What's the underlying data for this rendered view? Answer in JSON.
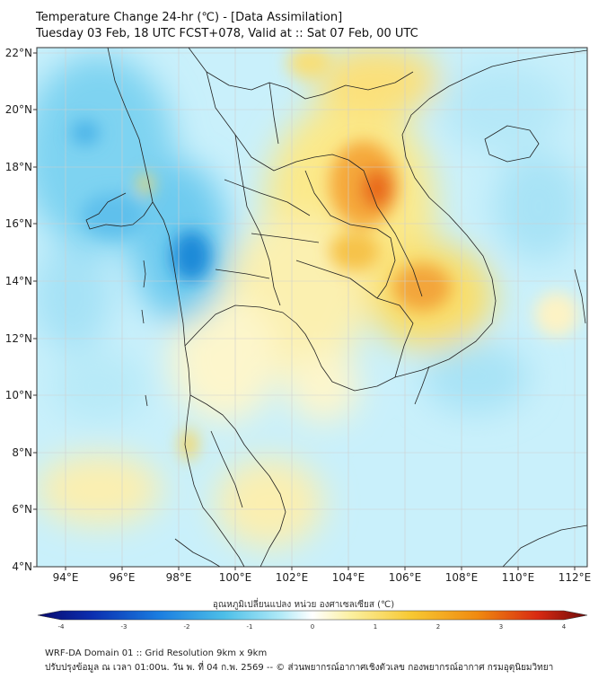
{
  "title_line1": "Temperature Change 24-hr (℃) - [Data Assimilation]",
  "title_line2": "Tuesday 03 Feb, 18 UTC FCST+078, Valid at :: Sat 07 Feb, 00 UTC",
  "lat_labels": [
    "22°N",
    "20°N",
    "18°N",
    "16°N",
    "14°N",
    "12°N",
    "10°N",
    "8°N",
    "6°N",
    "4°N"
  ],
  "lon_labels": [
    "94°E",
    "96°E",
    "98°E",
    "100°E",
    "102°E",
    "104°E",
    "106°E",
    "108°E",
    "110°E",
    "112°E"
  ],
  "colorbar": {
    "title": "อุณหภูมิเปลี่ยนแปลง หน่วย องศาเซลเซียส (℃)",
    "ticks": [
      "-4",
      "-3",
      "-2",
      "-1",
      "0",
      "1",
      "2",
      "3",
      "4"
    ],
    "range": [
      -4,
      4
    ],
    "colors": [
      "#0a0a6e",
      "#0b2fb0",
      "#1a7de0",
      "#4dbfe8",
      "#aee9f7",
      "#ffffff",
      "#fbf0a0",
      "#f7c832",
      "#f08a10",
      "#d82a12",
      "#6e0a0a"
    ]
  },
  "footer_line1": "WRF-DA Domain 01 :: Grid Resolution 9km x 9km",
  "footer_line2": "ปรับปรุงข้อมูล ณ เวลา 01:00น. วัน พ. ที่ 04 ก.พ. 2569 -- © ส่วนพยากรณ์อากาศเชิงตัวเลข กองพยากรณ์อากาศ กรมอุตุนิยมวิทยา"
}
